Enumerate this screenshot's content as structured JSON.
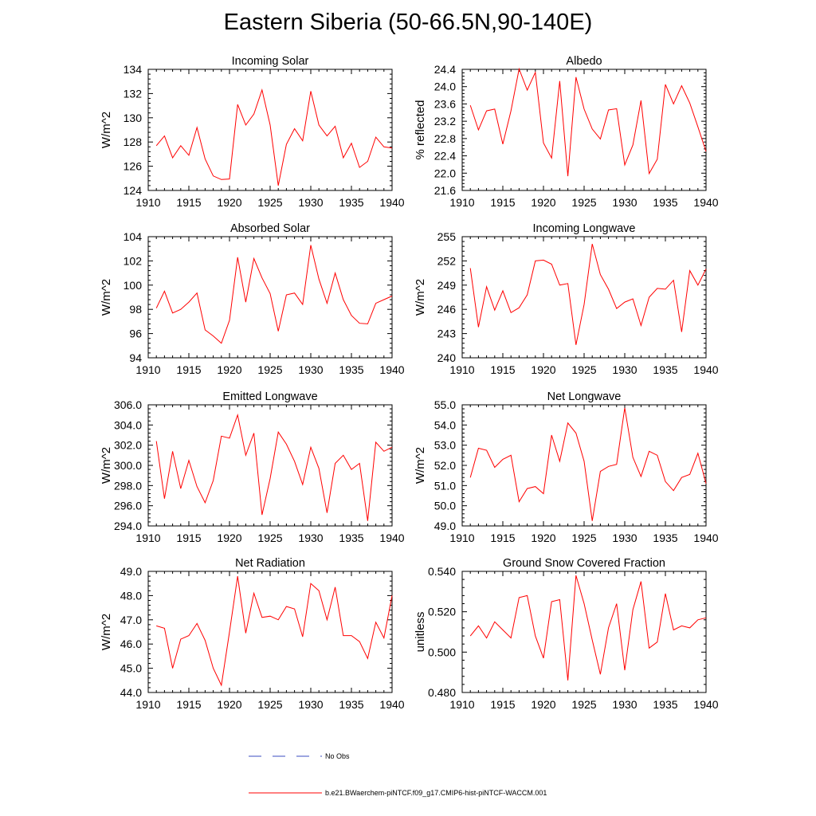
{
  "title": "Eastern Siberia (50-66.5N,90-140E)",
  "line_color": "#ff0000",
  "obs_color": "#3b4cc0",
  "legend": {
    "obs_label": "No Obs",
    "model_label": "b.e21.BWaerchem-piNTCF.f09_g17.CMIP6-hist-piNTCF-WACCM.001"
  },
  "chart_data": [
    {
      "type": "line",
      "title": "Incoming Solar",
      "ylabel": "W/m^2",
      "xlim": [
        1910,
        1940
      ],
      "ylim": [
        124,
        134
      ],
      "xticks": [
        "1910",
        "1915",
        "1920",
        "1925",
        "1930",
        "1935",
        "1940"
      ],
      "yticks": [
        "124",
        "126",
        "128",
        "130",
        "132",
        "134"
      ],
      "x": [
        1911,
        1912,
        1913,
        1914,
        1915,
        1916,
        1917,
        1918,
        1919,
        1920,
        1921,
        1922,
        1923,
        1924,
        1925,
        1926,
        1927,
        1928,
        1929,
        1930,
        1931,
        1932,
        1933,
        1934,
        1935,
        1936,
        1937,
        1938,
        1939,
        1940
      ],
      "values": [
        127.7,
        128.5,
        126.7,
        127.7,
        126.9,
        129.2,
        126.6,
        125.2,
        124.9,
        124.95,
        131.1,
        129.4,
        130.3,
        132.3,
        129.4,
        124.4,
        127.8,
        129.1,
        128.1,
        132.2,
        129.4,
        128.5,
        129.3,
        126.7,
        127.9,
        125.9,
        126.4,
        128.4,
        127.6,
        127.5
      ]
    },
    {
      "type": "line",
      "title": "Albedo",
      "ylabel": "% reflected",
      "xlim": [
        1910,
        1940
      ],
      "ylim": [
        21.6,
        24.4
      ],
      "xticks": [
        "1910",
        "1915",
        "1920",
        "1925",
        "1930",
        "1935",
        "1940"
      ],
      "yticks": [
        "21.6",
        "22.0",
        "22.4",
        "22.8",
        "23.2",
        "23.6",
        "24.0",
        "24.4"
      ],
      "x": [
        1911,
        1912,
        1913,
        1914,
        1915,
        1916,
        1917,
        1918,
        1919,
        1920,
        1921,
        1922,
        1923,
        1924,
        1925,
        1926,
        1927,
        1928,
        1929,
        1930,
        1931,
        1932,
        1933,
        1934,
        1935,
        1936,
        1937,
        1938,
        1939,
        1940
      ],
      "values": [
        23.57,
        23.0,
        23.44,
        23.48,
        22.67,
        23.44,
        24.41,
        23.92,
        24.33,
        22.7,
        22.35,
        24.13,
        21.93,
        24.22,
        23.48,
        23.02,
        22.79,
        23.46,
        23.49,
        22.19,
        22.65,
        23.68,
        21.99,
        22.32,
        24.05,
        23.6,
        24.02,
        23.62,
        23.07,
        22.5
      ]
    },
    {
      "type": "line",
      "title": "Absorbed Solar",
      "ylabel": "W/m^2",
      "xlim": [
        1910,
        1940
      ],
      "ylim": [
        94,
        104
      ],
      "xticks": [
        "1910",
        "1915",
        "1920",
        "1925",
        "1930",
        "1935",
        "1940"
      ],
      "yticks": [
        "94",
        "96",
        "98",
        "100",
        "102",
        "104"
      ],
      "x": [
        1911,
        1912,
        1913,
        1914,
        1915,
        1916,
        1917,
        1918,
        1919,
        1920,
        1921,
        1922,
        1923,
        1924,
        1925,
        1926,
        1927,
        1928,
        1929,
        1930,
        1931,
        1932,
        1933,
        1934,
        1935,
        1936,
        1937,
        1938,
        1939,
        1940
      ],
      "values": [
        98.1,
        99.5,
        97.7,
        98.0,
        98.6,
        99.35,
        96.3,
        95.8,
        95.2,
        97.1,
        102.3,
        98.6,
        102.2,
        100.6,
        99.3,
        96.2,
        99.2,
        99.35,
        98.4,
        103.3,
        100.5,
        98.5,
        101.0,
        98.8,
        97.5,
        96.85,
        96.8,
        98.5,
        98.8,
        99.1
      ]
    },
    {
      "type": "line",
      "title": "Incoming Longwave",
      "ylabel": "W/m^2",
      "xlim": [
        1910,
        1940
      ],
      "ylim": [
        240,
        255
      ],
      "xticks": [
        "1910",
        "1915",
        "1920",
        "1925",
        "1930",
        "1935",
        "1940"
      ],
      "yticks": [
        "240",
        "243",
        "246",
        "249",
        "252",
        "255"
      ],
      "x": [
        1911,
        1912,
        1913,
        1914,
        1915,
        1916,
        1917,
        1918,
        1919,
        1920,
        1921,
        1922,
        1923,
        1924,
        1925,
        1926,
        1927,
        1928,
        1929,
        1930,
        1931,
        1932,
        1933,
        1934,
        1935,
        1936,
        1937,
        1938,
        1939,
        1940
      ],
      "values": [
        251.1,
        243.8,
        248.8,
        245.9,
        248.3,
        245.6,
        246.2,
        247.8,
        252.0,
        252.1,
        251.6,
        249.0,
        249.2,
        241.6,
        246.6,
        254.1,
        250.3,
        248.5,
        246.1,
        246.9,
        247.3,
        244.0,
        247.5,
        248.6,
        248.5,
        249.6,
        243.2,
        250.8,
        249.0,
        251.0
      ]
    },
    {
      "type": "line",
      "title": "Emitted Longwave",
      "ylabel": "W/m^2",
      "xlim": [
        1910,
        1940
      ],
      "ylim": [
        294,
        306
      ],
      "xticks": [
        "1910",
        "1915",
        "1920",
        "1925",
        "1930",
        "1935",
        "1940"
      ],
      "yticks": [
        "294.0",
        "296.0",
        "298.0",
        "300.0",
        "302.0",
        "304.0",
        "306.0"
      ],
      "x": [
        1911,
        1912,
        1913,
        1914,
        1915,
        1916,
        1917,
        1918,
        1919,
        1920,
        1921,
        1922,
        1923,
        1924,
        1925,
        1926,
        1927,
        1928,
        1929,
        1930,
        1931,
        1932,
        1933,
        1934,
        1935,
        1936,
        1937,
        1938,
        1939,
        1940
      ],
      "values": [
        302.4,
        296.7,
        301.4,
        297.7,
        300.5,
        297.9,
        296.3,
        298.5,
        302.9,
        302.7,
        305.0,
        301.0,
        303.2,
        295.1,
        298.7,
        303.3,
        302.1,
        300.4,
        298.1,
        301.8,
        299.7,
        295.3,
        300.2,
        301.0,
        299.6,
        300.2,
        294.5,
        302.3,
        301.4,
        301.8
      ]
    },
    {
      "type": "line",
      "title": "Net Longwave",
      "ylabel": "W/m^2",
      "xlim": [
        1910,
        1940
      ],
      "ylim": [
        49,
        55
      ],
      "xticks": [
        "1910",
        "1915",
        "1920",
        "1925",
        "1930",
        "1935",
        "1940"
      ],
      "yticks": [
        "49.0",
        "50.0",
        "51.0",
        "52.0",
        "53.0",
        "54.0",
        "55.0"
      ],
      "x": [
        1911,
        1912,
        1913,
        1914,
        1915,
        1916,
        1917,
        1918,
        1919,
        1920,
        1921,
        1922,
        1923,
        1924,
        1925,
        1926,
        1927,
        1928,
        1929,
        1930,
        1931,
        1932,
        1933,
        1934,
        1935,
        1936,
        1937,
        1938,
        1939,
        1940
      ],
      "values": [
        51.4,
        52.85,
        52.75,
        51.9,
        52.3,
        52.5,
        50.2,
        50.85,
        50.95,
        50.6,
        53.5,
        52.2,
        54.1,
        53.6,
        52.2,
        49.25,
        51.7,
        51.95,
        52.05,
        54.85,
        52.4,
        51.45,
        52.7,
        52.5,
        51.2,
        50.75,
        51.4,
        51.55,
        52.6,
        51.1
      ]
    },
    {
      "type": "line",
      "title": "Net Radiation",
      "ylabel": "W/m^2",
      "xlim": [
        1910,
        1940
      ],
      "ylim": [
        44,
        49
      ],
      "xticks": [
        "1910",
        "1915",
        "1920",
        "1925",
        "1930",
        "1935",
        "1940"
      ],
      "yticks": [
        "44.0",
        "45.0",
        "46.0",
        "47.0",
        "48.0",
        "49.0"
      ],
      "x": [
        1911,
        1912,
        1913,
        1914,
        1915,
        1916,
        1917,
        1918,
        1919,
        1920,
        1921,
        1922,
        1923,
        1924,
        1925,
        1926,
        1927,
        1928,
        1929,
        1930,
        1931,
        1932,
        1933,
        1934,
        1935,
        1936,
        1937,
        1938,
        1939,
        1940
      ],
      "values": [
        46.75,
        46.65,
        45.0,
        46.2,
        46.35,
        46.85,
        46.15,
        45.0,
        44.3,
        46.5,
        48.8,
        46.45,
        48.1,
        47.1,
        47.15,
        47.0,
        47.55,
        47.45,
        46.3,
        48.5,
        48.2,
        47.0,
        48.35,
        46.35,
        46.35,
        46.1,
        45.4,
        46.9,
        46.25,
        48.0
      ]
    },
    {
      "type": "line",
      "title": "Ground Snow Covered Fraction",
      "ylabel": "unitless",
      "xlim": [
        1910,
        1940
      ],
      "ylim": [
        0.48,
        0.54
      ],
      "xticks": [
        "1910",
        "1915",
        "1920",
        "1925",
        "1930",
        "1935",
        "1940"
      ],
      "yticks": [
        "0.480",
        "0.500",
        "0.520",
        "0.540"
      ],
      "x": [
        1911,
        1912,
        1913,
        1914,
        1915,
        1916,
        1917,
        1918,
        1919,
        1920,
        1921,
        1922,
        1923,
        1924,
        1925,
        1926,
        1927,
        1928,
        1929,
        1930,
        1931,
        1932,
        1933,
        1934,
        1935,
        1936,
        1937,
        1938,
        1939,
        1940
      ],
      "values": [
        0.508,
        0.513,
        0.507,
        0.515,
        0.511,
        0.507,
        0.527,
        0.528,
        0.508,
        0.497,
        0.525,
        0.526,
        0.486,
        0.538,
        0.524,
        0.506,
        0.489,
        0.512,
        0.524,
        0.491,
        0.521,
        0.535,
        0.502,
        0.505,
        0.529,
        0.511,
        0.513,
        0.512,
        0.516,
        0.517
      ]
    }
  ]
}
